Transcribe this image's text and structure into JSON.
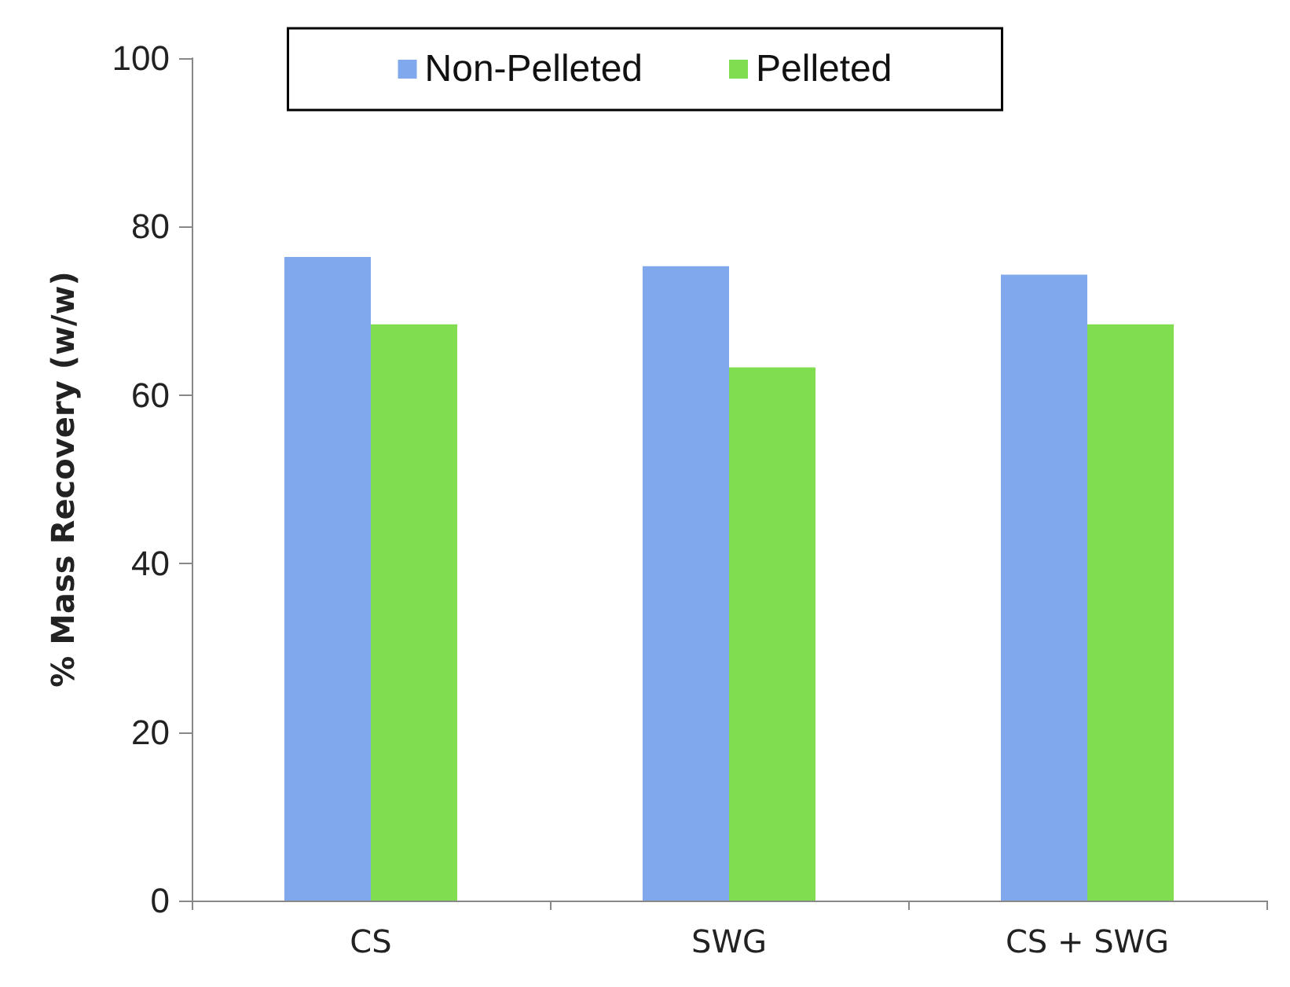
{
  "chart_data": {
    "type": "bar",
    "ylabel": "% Mass Recovery (w/w)",
    "categories": [
      "CS",
      "SWG",
      "CS + SWG"
    ],
    "series": [
      {
        "name": "Non-Pelleted",
        "color": "#7fa9ec",
        "values": [
          76.4,
          75.3,
          74.3
        ]
      },
      {
        "name": "Pelleted",
        "color": "#80dd50",
        "values": [
          68.4,
          63.3,
          68.4
        ]
      }
    ],
    "ylim": [
      0,
      100
    ],
    "yticks": [
      0,
      20,
      40,
      60,
      80,
      100
    ],
    "grid": false,
    "legend": "top"
  }
}
